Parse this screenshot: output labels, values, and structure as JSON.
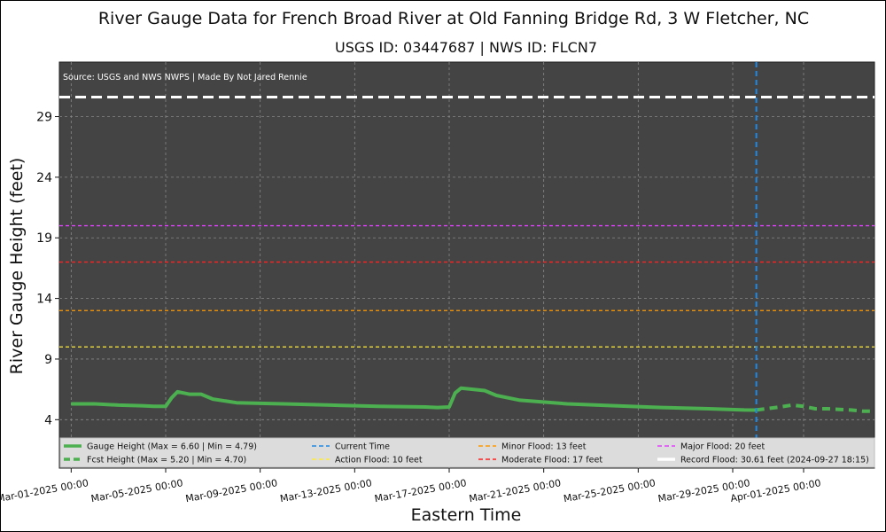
{
  "chart_data": {
    "type": "line",
    "title": "River Gauge Data for French Broad River at Old Fanning Bridge Rd, 3 W Fletcher, NC",
    "subtitle": "USGS ID: 03447687 | NWS ID: FLCN7",
    "source_note": "Source: USGS and NWS NWPS | Made By Not Jared Rennie",
    "xlabel": "Eastern Time",
    "ylabel": "River Gauge Height (feet)",
    "ylim": [
      0,
      33.5
    ],
    "yticks": [
      4,
      9,
      14,
      19,
      24,
      29
    ],
    "xlim": [
      "2025-02-28T12:00",
      "2025-04-04T00:00"
    ],
    "xticks": [
      {
        "date": "2025-03-01T00:00",
        "label": "Mar-01-2025 00:00"
      },
      {
        "date": "2025-03-05T00:00",
        "label": "Mar-05-2025 00:00"
      },
      {
        "date": "2025-03-09T00:00",
        "label": "Mar-09-2025 00:00"
      },
      {
        "date": "2025-03-13T00:00",
        "label": "Mar-13-2025 00:00"
      },
      {
        "date": "2025-03-17T00:00",
        "label": "Mar-17-2025 00:00"
      },
      {
        "date": "2025-03-21T00:00",
        "label": "Mar-21-2025 00:00"
      },
      {
        "date": "2025-03-25T00:00",
        "label": "Mar-25-2025 00:00"
      },
      {
        "date": "2025-03-29T00:00",
        "label": "Mar-29-2025 00:00"
      },
      {
        "date": "2025-04-01T00:00",
        "label": "Apr-01-2025 00:00"
      }
    ],
    "grid": true,
    "legend_placement": "bottom",
    "colors": {
      "background": "#444444",
      "grid": "#888888",
      "gauge": "#4caf50",
      "current": "#1e88e5",
      "action": "#ffeb3b",
      "minor": "#ff9800",
      "moderate": "#ff2020",
      "major": "#e040fb",
      "record": "#ffffff"
    },
    "series": [
      {
        "name": "Gauge Height (Max = 6.60 | Min = 4.79)",
        "style": "solid",
        "color": "#4caf50",
        "x": [
          "2025-03-01T00:00",
          "2025-03-02T00:00",
          "2025-03-03T00:00",
          "2025-03-04T00:00",
          "2025-03-04T12:00",
          "2025-03-05T00:00",
          "2025-03-05T06:00",
          "2025-03-05T12:00",
          "2025-03-05T18:00",
          "2025-03-06T00:00",
          "2025-03-06T12:00",
          "2025-03-07T00:00",
          "2025-03-08T00:00",
          "2025-03-10T00:00",
          "2025-03-12T00:00",
          "2025-03-14T00:00",
          "2025-03-16T00:00",
          "2025-03-16T12:00",
          "2025-03-17T00:00",
          "2025-03-17T06:00",
          "2025-03-17T12:00",
          "2025-03-18T00:00",
          "2025-03-18T12:00",
          "2025-03-19T00:00",
          "2025-03-20T00:00",
          "2025-03-22T00:00",
          "2025-03-24T00:00",
          "2025-03-26T00:00",
          "2025-03-28T00:00",
          "2025-03-29T12:00",
          "2025-03-30T00:00"
        ],
        "y": [
          5.3,
          5.3,
          5.2,
          5.15,
          5.1,
          5.1,
          5.8,
          6.3,
          6.2,
          6.1,
          6.1,
          5.7,
          5.4,
          5.3,
          5.2,
          5.1,
          5.05,
          5.0,
          5.05,
          6.2,
          6.6,
          6.5,
          6.4,
          6.0,
          5.6,
          5.3,
          5.15,
          5.0,
          4.9,
          4.8,
          4.79
        ]
      },
      {
        "name": "Fcst Height (Max = 5.20 | Min = 4.70)",
        "style": "dashed",
        "color": "#4caf50",
        "x": [
          "2025-03-30T00:00",
          "2025-03-31T00:00",
          "2025-03-31T12:00",
          "2025-04-01T00:00",
          "2025-04-01T12:00",
          "2025-04-02T00:00",
          "2025-04-02T12:00",
          "2025-04-03T00:00",
          "2025-04-03T12:00",
          "2025-04-04T00:00"
        ],
        "y": [
          4.8,
          5.05,
          5.2,
          5.1,
          4.9,
          4.9,
          4.85,
          4.8,
          4.7,
          4.7
        ]
      }
    ],
    "reference_lines": [
      {
        "name": "Action Flood: 10 feet",
        "value": 10,
        "color": "#ffeb3b",
        "style": "dashed"
      },
      {
        "name": "Minor Flood: 13 feet",
        "value": 13,
        "color": "#ff9800",
        "style": "dashed"
      },
      {
        "name": "Moderate Flood: 17 feet",
        "value": 17,
        "color": "#ff2020",
        "style": "dashed"
      },
      {
        "name": "Major Flood: 20 feet",
        "value": 20,
        "color": "#e040fb",
        "style": "dashed"
      },
      {
        "name": "Record Flood: 30.61 feet (2024-09-27 18:15)",
        "value": 30.61,
        "color": "#ffffff",
        "style": "dashed-thick"
      }
    ],
    "current_time": {
      "name": "Current Time",
      "date": "2025-03-30T00:00",
      "color": "#1e88e5"
    },
    "legend": [
      {
        "label": "Gauge Height (Max = 6.60 | Min = 4.79)",
        "color": "#4caf50",
        "style": "solid-thick"
      },
      {
        "label": "Fcst Height (Max = 5.20 | Min = 4.70)",
        "color": "#4caf50",
        "style": "dashed-thick"
      },
      {
        "label": "Current Time",
        "color": "#1e88e5",
        "style": "dashed"
      },
      {
        "label": "Action Flood: 10 feet",
        "color": "#ffeb3b",
        "style": "dashed"
      },
      {
        "label": "Minor Flood: 13 feet",
        "color": "#ff9800",
        "style": "dashed"
      },
      {
        "label": "Moderate Flood: 17 feet",
        "color": "#ff2020",
        "style": "dashed"
      },
      {
        "label": "Major Flood: 20 feet",
        "color": "#e040fb",
        "style": "dashed"
      },
      {
        "label": "Record Flood: 30.61 feet (2024-09-27 18:15)",
        "color": "#ffffff",
        "style": "solid-thick"
      }
    ]
  }
}
